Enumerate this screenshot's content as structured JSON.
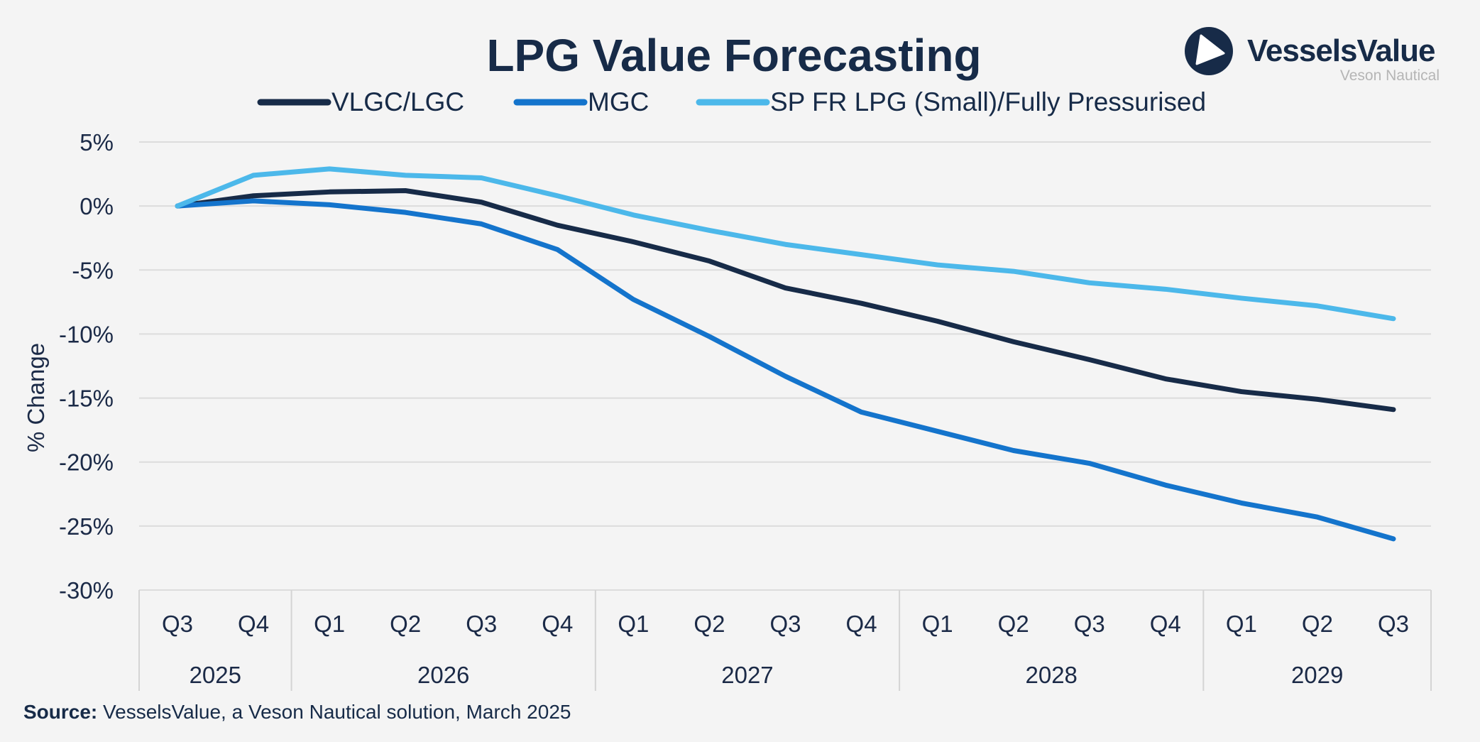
{
  "brand": {
    "name": "VesselsValue",
    "sub": "Veson Nautical",
    "color": "#172b48"
  },
  "source": {
    "label": "Source:",
    "text": " VesselsValue, a Veson Nautical solution, March 2025"
  },
  "chart_data": {
    "type": "line",
    "title": "LPG Value Forecasting",
    "ylabel": "% Change",
    "xlabel": "",
    "ylim": [
      -30,
      5
    ],
    "yticks": [
      5,
      0,
      -5,
      -10,
      -15,
      -20,
      -25,
      -30
    ],
    "ytick_labels": [
      "5%",
      "0%",
      "-5%",
      "-10%",
      "-15%",
      "-20%",
      "-25%",
      "-30%"
    ],
    "grid": true,
    "legend": "top",
    "categories": [
      "Q3",
      "Q4",
      "Q1",
      "Q2",
      "Q3",
      "Q4",
      "Q1",
      "Q2",
      "Q3",
      "Q4",
      "Q1",
      "Q2",
      "Q3",
      "Q4",
      "Q1",
      "Q2",
      "Q3"
    ],
    "years": [
      {
        "label": "2025",
        "span": 2
      },
      {
        "label": "2026",
        "span": 4
      },
      {
        "label": "2027",
        "span": 4
      },
      {
        "label": "2028",
        "span": 4
      },
      {
        "label": "2029",
        "span": 3
      }
    ],
    "series": [
      {
        "name": "VLGC/LGC",
        "color": "#172b48",
        "values": [
          0,
          0.8,
          1.1,
          1.2,
          0.3,
          -1.5,
          -2.8,
          -4.3,
          -6.4,
          -7.6,
          -9.0,
          -10.6,
          -12.0,
          -13.5,
          -14.5,
          -15.1,
          -15.9
        ]
      },
      {
        "name": "MGC",
        "color": "#1474cc",
        "values": [
          0,
          0.4,
          0.1,
          -0.5,
          -1.4,
          -3.4,
          -7.3,
          -10.2,
          -13.3,
          -16.1,
          -17.6,
          -19.1,
          -20.1,
          -21.8,
          -23.2,
          -24.3,
          -26.0
        ]
      },
      {
        "name": "SP FR LPG (Small)/Fully Pressurised",
        "color": "#4cb8ea",
        "values": [
          0,
          2.4,
          2.9,
          2.4,
          2.2,
          0.8,
          -0.7,
          -1.9,
          -3.0,
          -3.8,
          -4.6,
          -5.1,
          -6.0,
          -6.5,
          -7.2,
          -7.8,
          -8.8
        ]
      }
    ]
  }
}
